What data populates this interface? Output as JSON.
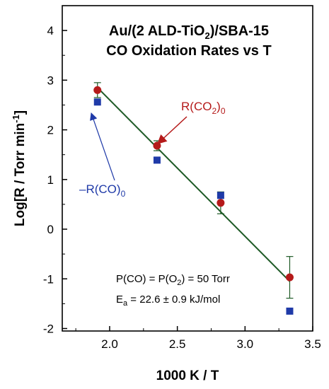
{
  "chart_data": {
    "type": "scatter",
    "title_line1_prefix": "Au/(2 ALD-TiO",
    "title_line1_sub": "2",
    "title_line1_suffix": ")/SBA-15",
    "title_line2": "CO Oxidation Rates vs T",
    "xlabel": "1000 K / T",
    "ylabel_prefix": "Log[R / Torr min",
    "ylabel_sup": "-1",
    "ylabel_suffix": "]",
    "xlim": [
      1.65,
      3.5
    ],
    "ylim": [
      -2.05,
      4.5
    ],
    "x_ticks": [
      2.0,
      2.5,
      3.0,
      3.5
    ],
    "x_tick_labels": [
      "2.0",
      "2.5",
      "3.0",
      "3.5"
    ],
    "y_ticks": [
      -2,
      -1,
      0,
      1,
      2,
      3,
      4
    ],
    "y_tick_labels": [
      "-2",
      "-1",
      "0",
      "1",
      "2",
      "3",
      "4"
    ],
    "series": [
      {
        "name": "R(CO2)0",
        "label_main": "R(CO",
        "label_sub1": "2",
        "label_mid": ")",
        "label_sub2": "0",
        "marker": "circle",
        "color": "#b51a1a",
        "x": [
          1.91,
          2.35,
          2.82,
          3.33
        ],
        "y": [
          2.8,
          1.68,
          0.53,
          -0.97
        ],
        "err": [
          0.15,
          0.1,
          0.22,
          0.42
        ]
      },
      {
        "name": "-R(CO)0",
        "label_main": "–R(CO)",
        "label_sub2": "0",
        "marker": "square",
        "color": "#1f3aa8",
        "x": [
          1.91,
          2.35,
          2.82,
          3.33
        ],
        "y": [
          2.56,
          1.39,
          0.68,
          -1.65
        ]
      }
    ],
    "fit_line": {
      "color": "#1e5a26",
      "x": [
        1.91,
        3.33
      ],
      "y": [
        2.85,
        -1.05
      ]
    },
    "annotation_1": "P(CO) = P(O",
    "annotation_1_sub": "2",
    "annotation_1_suffix": ") = 50 Torr",
    "annotation_2_prefix": "E",
    "annotation_2_sub": "a",
    "annotation_2_suffix": " = 22.6 ± 0.9 kJ/mol",
    "grid": false
  }
}
